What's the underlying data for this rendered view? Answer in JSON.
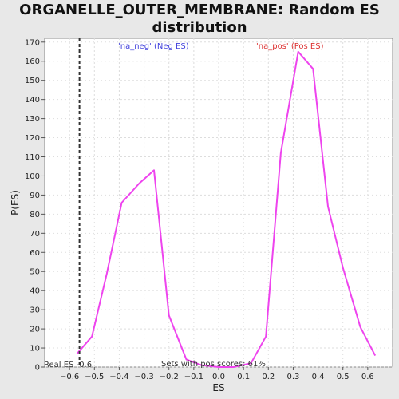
{
  "title_line1": "ORGANELLE_OUTER_MEMBRANE: Random ES",
  "title_line2": "distribution",
  "chart_data": {
    "type": "line",
    "xlabel": "ES",
    "ylabel": "P(ES)",
    "xlim": [
      -0.7,
      0.7
    ],
    "ylim": [
      0,
      172
    ],
    "xticks": [
      "-0.6",
      "-0.5",
      "-0.4",
      "-0.3",
      "-0.2",
      "-0.1",
      "0.0",
      "0.1",
      "0.2",
      "0.3",
      "0.4",
      "0.5",
      "0.6"
    ],
    "yticks": [
      0,
      10,
      20,
      30,
      40,
      50,
      60,
      70,
      80,
      90,
      100,
      110,
      120,
      130,
      140,
      150,
      160,
      170
    ],
    "grid": true,
    "series": [
      {
        "color": "#ee44ee",
        "x": [
          -0.57,
          -0.51,
          -0.45,
          -0.39,
          -0.32,
          -0.26,
          -0.2,
          -0.13,
          -0.07,
          0.0,
          0.06,
          0.13,
          0.19,
          0.25,
          0.32,
          0.38,
          0.44,
          0.5,
          0.57,
          0.63
        ],
        "y": [
          7,
          16,
          49,
          86,
          96,
          103,
          27,
          4,
          1,
          0,
          0,
          2,
          16,
          112,
          165,
          156,
          84,
          52,
          21,
          6
        ]
      }
    ],
    "vline": {
      "x": -0.56,
      "color": "#333333"
    },
    "annotations": {
      "neg_label": "'na_neg' (Neg ES)",
      "pos_label": "'na_pos' (Pos ES)",
      "real_es": "Real ES -0.6",
      "pos_scores": "Sets with pos scores: 61%"
    },
    "colors": {
      "neg": "#4444dd",
      "pos": "#dd3333"
    }
  }
}
